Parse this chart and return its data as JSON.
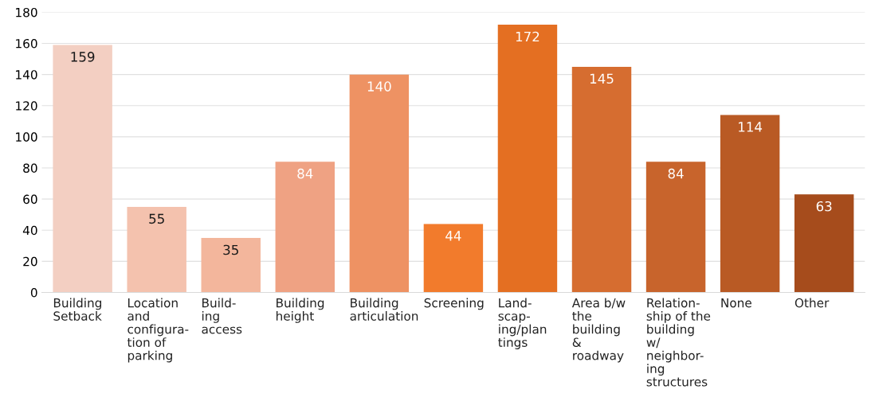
{
  "chart_data": {
    "type": "bar",
    "categories": [
      "Building\nSetback",
      "Location\nand\nconfigura-\ntion of\nparking",
      "Build-\ning\naccess",
      "Building\nheight",
      "Building\narticulation",
      "Screening",
      "Land-\nscap-\ning/plan\ntings",
      "Area b/w\nthe\nbuilding\n&\nroadway",
      "Relation-\nship of the\nbuilding\nw/\nneighbor-\ning\nstructures",
      "None",
      "Other"
    ],
    "values": [
      159,
      55,
      35,
      84,
      140,
      44,
      172,
      145,
      84,
      114,
      63
    ],
    "colors": [
      "#f3cfc2",
      "#f4c2ae",
      "#f3b69c",
      "#efa283",
      "#ee9263",
      "#f27b2c",
      "#e46f22",
      "#d66d30",
      "#c8642c",
      "#b95a24",
      "#a64c1c"
    ],
    "ylim": [
      0,
      180
    ],
    "yticks": [
      0,
      20,
      40,
      60,
      80,
      100,
      120,
      140,
      160,
      180
    ],
    "grid": "y",
    "data_labels": true
  }
}
